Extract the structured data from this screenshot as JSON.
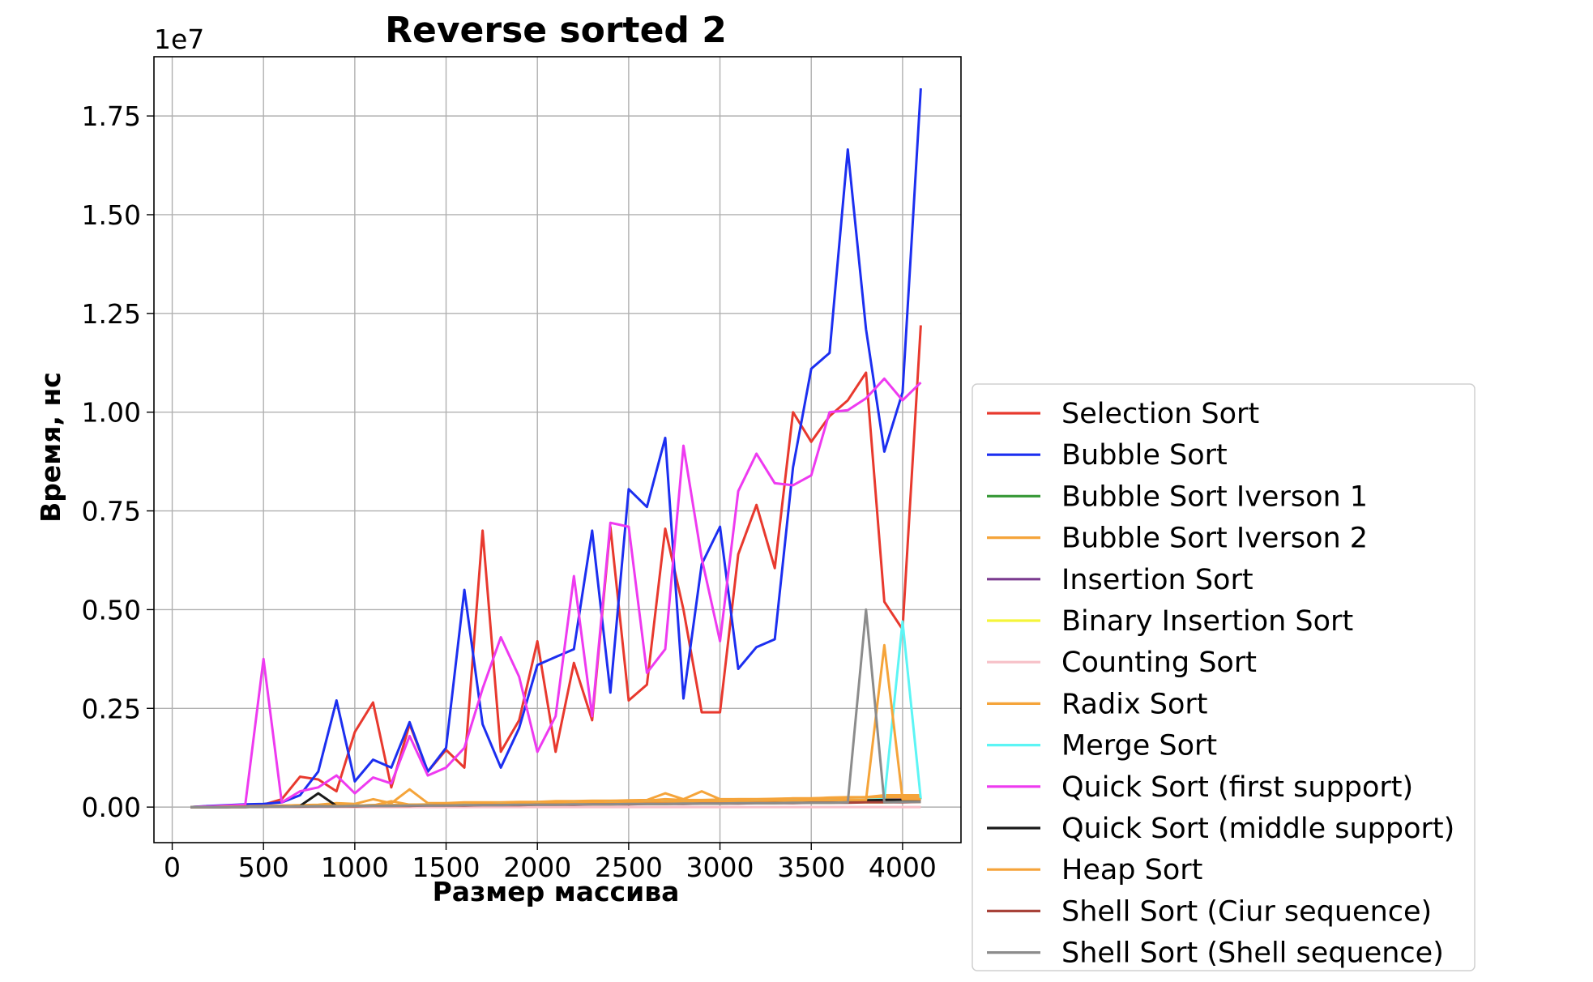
{
  "chart_data": {
    "type": "line",
    "title": "Reverse sorted 2",
    "xlabel": "Размер массива",
    "ylabel": "Время, нс",
    "y_scale_label": "1e7",
    "xlim": [
      -100,
      4320
    ],
    "ylim": [
      -0.09,
      1.9
    ],
    "x_ticks": [
      0,
      500,
      1000,
      1500,
      2000,
      2500,
      3000,
      3500,
      4000
    ],
    "y_ticks": [
      0,
      0.25,
      0.5,
      0.75,
      1.0,
      1.25,
      1.5,
      1.75
    ],
    "x_tick_labels": [
      "0",
      "500",
      "1000",
      "1500",
      "2000",
      "2500",
      "3000",
      "3500",
      "4000"
    ],
    "y_tick_labels": [
      "0.00",
      "0.25",
      "0.50",
      "0.75",
      "1.00",
      "1.25",
      "1.50",
      "1.75"
    ],
    "grid": true,
    "legend_position": "outside-right-bottom",
    "x": [
      100,
      200,
      300,
      400,
      500,
      600,
      700,
      800,
      900,
      1000,
      1100,
      1200,
      1300,
      1400,
      1500,
      1600,
      1700,
      1800,
      1900,
      2000,
      2100,
      2200,
      2300,
      2400,
      2500,
      2600,
      2700,
      2800,
      2900,
      3000,
      3100,
      3200,
      3300,
      3400,
      3500,
      3600,
      3700,
      3800,
      3900,
      4000,
      4100
    ],
    "series": [
      {
        "name": "Selection Sort",
        "color": "#e8392e",
        "values": [
          0,
          0.002,
          0.004,
          0.005,
          0.006,
          0.02,
          0.077,
          0.07,
          0.04,
          0.19,
          0.265,
          0.05,
          0.21,
          0.09,
          0.145,
          0.1,
          0.7,
          0.14,
          0.22,
          0.42,
          0.14,
          0.365,
          0.22,
          0.71,
          0.27,
          0.31,
          0.705,
          0.5,
          0.24,
          0.24,
          0.64,
          0.765,
          0.605,
          1.0,
          0.925,
          0.99,
          1.03,
          1.1,
          0.52,
          0.45,
          1.22
        ]
      },
      {
        "name": "Bubble Sort",
        "color": "#1c2ff0",
        "values": [
          0,
          0.003,
          0.005,
          0.007,
          0.008,
          0.012,
          0.03,
          0.09,
          0.27,
          0.065,
          0.12,
          0.1,
          0.215,
          0.09,
          0.15,
          0.55,
          0.21,
          0.1,
          0.2,
          0.36,
          0.38,
          0.4,
          0.7,
          0.29,
          0.805,
          0.76,
          0.935,
          0.275,
          0.615,
          0.71,
          0.35,
          0.405,
          0.425,
          0.86,
          1.11,
          1.15,
          1.665,
          1.21,
          0.9,
          1.05,
          1.82
        ]
      },
      {
        "name": "Bubble Sort Iverson 1",
        "color": "#3a9a3a",
        "values": [
          0,
          0,
          0,
          0,
          0.002,
          0.002,
          0.003,
          0.003,
          0.004,
          0.004,
          0.005,
          0.005,
          0.006,
          0.006,
          0.007,
          0.007,
          0.008,
          0.008,
          0.009,
          0.009,
          0.01,
          0.01,
          0.011,
          0.011,
          0.012,
          0.012,
          0.013,
          0.013,
          0.014,
          0.014,
          0.015,
          0.015,
          0.016,
          0.016,
          0.017,
          0.017,
          0.018,
          0.018,
          0.019,
          0.019,
          0.02
        ]
      },
      {
        "name": "Bubble Sort Iverson 2",
        "color": "#f5a43a",
        "values": [
          0,
          0,
          0.002,
          0.002,
          0.003,
          0.004,
          0.005,
          0.006,
          0.01,
          0.008,
          0.02,
          0.01,
          0.045,
          0.01,
          0.01,
          0.012,
          0.012,
          0.012,
          0.013,
          0.013,
          0.015,
          0.015,
          0.016,
          0.016,
          0.017,
          0.018,
          0.035,
          0.02,
          0.04,
          0.02,
          0.02,
          0.02,
          0.02,
          0.022,
          0.022,
          0.024,
          0.025,
          0.025,
          0.03,
          0.03,
          0.03
        ]
      },
      {
        "name": "Insertion Sort",
        "color": "#7a3b8f",
        "values": [
          0,
          0,
          0,
          0.001,
          0.001,
          0.002,
          0.002,
          0.003,
          0.003,
          0.004,
          0.004,
          0.005,
          0.005,
          0.006,
          0.006,
          0.007,
          0.007,
          0.008,
          0.008,
          0.009,
          0.009,
          0.01,
          0.01,
          0.011,
          0.011,
          0.012,
          0.012,
          0.013,
          0.013,
          0.014,
          0.014,
          0.015,
          0.015,
          0.016,
          0.016,
          0.017,
          0.017,
          0.018,
          0.018,
          0.019,
          0.019
        ]
      },
      {
        "name": "Binary Insertion Sort",
        "color": "#f5f53a",
        "values": [
          0,
          0,
          0,
          0.001,
          0.001,
          0.001,
          0.002,
          0.002,
          0.002,
          0.003,
          0.003,
          0.003,
          0.004,
          0.004,
          0.004,
          0.005,
          0.005,
          0.005,
          0.006,
          0.006,
          0.006,
          0.007,
          0.007,
          0.007,
          0.008,
          0.008,
          0.008,
          0.009,
          0.009,
          0.009,
          0.01,
          0.01,
          0.01,
          0.011,
          0.011,
          0.011,
          0.012,
          0.012,
          0.012,
          0.013,
          0.013
        ]
      },
      {
        "name": "Counting Sort",
        "color": "#f7c0c8",
        "values": [
          0,
          0,
          0,
          0,
          0,
          0,
          0,
          0,
          0,
          0,
          0,
          0,
          0,
          0,
          0,
          0,
          0,
          0,
          0,
          0,
          0,
          0,
          0,
          0,
          0,
          0,
          0,
          0,
          0,
          0,
          0,
          0,
          0,
          0,
          0,
          0,
          0,
          0,
          0,
          0,
          0
        ]
      },
      {
        "name": "Radix Sort",
        "color": "#f5a43a",
        "values": [
          0,
          0,
          0,
          0,
          0.001,
          0.002,
          0.004,
          0.005,
          0.004,
          0.003,
          0.004,
          0.015,
          0.006,
          0.007,
          0.008,
          0.009,
          0.01,
          0.01,
          0.011,
          0.012,
          0.012,
          0.013,
          0.013,
          0.014,
          0.015,
          0.016,
          0.02,
          0.018,
          0.018,
          0.019,
          0.02,
          0.02,
          0.021,
          0.022,
          0.022,
          0.023,
          0.024,
          0.025,
          0.025,
          0.025,
          0.026
        ]
      },
      {
        "name": "Merge Sort",
        "color": "#5cf5f5",
        "values": [
          0,
          0,
          0,
          0.001,
          0.001,
          0.002,
          0.002,
          0.003,
          0.003,
          0.004,
          0.004,
          0.005,
          0.005,
          0.006,
          0.006,
          0.007,
          0.007,
          0.008,
          0.008,
          0.009,
          0.009,
          0.01,
          0.01,
          0.011,
          0.011,
          0.012,
          0.012,
          0.013,
          0.013,
          0.014,
          0.014,
          0.015,
          0.015,
          0.016,
          0.016,
          0.017,
          0.017,
          0.018,
          0.02,
          0.47,
          0.02
        ]
      },
      {
        "name": "Quick Sort (first support)",
        "color": "#ee3af0",
        "values": [
          0,
          0.002,
          0.004,
          0.006,
          0.375,
          0.012,
          0.04,
          0.05,
          0.08,
          0.035,
          0.075,
          0.06,
          0.18,
          0.08,
          0.1,
          0.15,
          0.3,
          0.43,
          0.33,
          0.14,
          0.23,
          0.585,
          0.23,
          0.72,
          0.71,
          0.34,
          0.4,
          0.915,
          0.63,
          0.42,
          0.8,
          0.895,
          0.82,
          0.815,
          0.84,
          1.0,
          1.005,
          1.035,
          1.085,
          1.03,
          1.075
        ]
      },
      {
        "name": "Quick Sort (middle support)",
        "color": "#1a1a1a",
        "values": [
          0,
          0,
          0,
          0.001,
          0.001,
          0.002,
          0.003,
          0.035,
          0.003,
          0.003,
          0.004,
          0.004,
          0.005,
          0.005,
          0.006,
          0.006,
          0.007,
          0.007,
          0.008,
          0.008,
          0.009,
          0.009,
          0.01,
          0.01,
          0.011,
          0.011,
          0.012,
          0.012,
          0.013,
          0.013,
          0.014,
          0.014,
          0.015,
          0.015,
          0.016,
          0.016,
          0.017,
          0.017,
          0.018,
          0.018,
          0.019
        ]
      },
      {
        "name": "Heap Sort",
        "color": "#f5a43a",
        "values": [
          0,
          0,
          0.001,
          0.001,
          0.002,
          0.002,
          0.003,
          0.003,
          0.004,
          0.004,
          0.005,
          0.005,
          0.006,
          0.006,
          0.007,
          0.007,
          0.008,
          0.008,
          0.009,
          0.009,
          0.01,
          0.01,
          0.011,
          0.011,
          0.012,
          0.012,
          0.013,
          0.013,
          0.014,
          0.014,
          0.015,
          0.015,
          0.016,
          0.016,
          0.017,
          0.017,
          0.018,
          0.018,
          0.41,
          0.02,
          0.02
        ]
      },
      {
        "name": "Shell Sort (Ciur sequence)",
        "color": "#a8433a",
        "values": [
          0,
          0,
          0,
          0,
          0.001,
          0.001,
          0.001,
          0.002,
          0.002,
          0.002,
          0.003,
          0.003,
          0.003,
          0.004,
          0.004,
          0.004,
          0.005,
          0.005,
          0.005,
          0.006,
          0.006,
          0.006,
          0.007,
          0.007,
          0.007,
          0.008,
          0.008,
          0.008,
          0.009,
          0.009,
          0.009,
          0.01,
          0.01,
          0.01,
          0.011,
          0.011,
          0.011,
          0.012,
          0.012,
          0.012,
          0.013
        ]
      },
      {
        "name": "Shell Sort (Shell sequence)",
        "color": "#8c8c8c",
        "values": [
          0,
          0,
          0,
          0,
          0.001,
          0.001,
          0.002,
          0.002,
          0.002,
          0.003,
          0.003,
          0.003,
          0.004,
          0.004,
          0.004,
          0.005,
          0.005,
          0.005,
          0.006,
          0.006,
          0.006,
          0.007,
          0.007,
          0.007,
          0.008,
          0.008,
          0.008,
          0.009,
          0.009,
          0.009,
          0.01,
          0.01,
          0.01,
          0.011,
          0.011,
          0.011,
          0.012,
          0.5,
          0.012,
          0.013,
          0.013
        ]
      }
    ]
  }
}
